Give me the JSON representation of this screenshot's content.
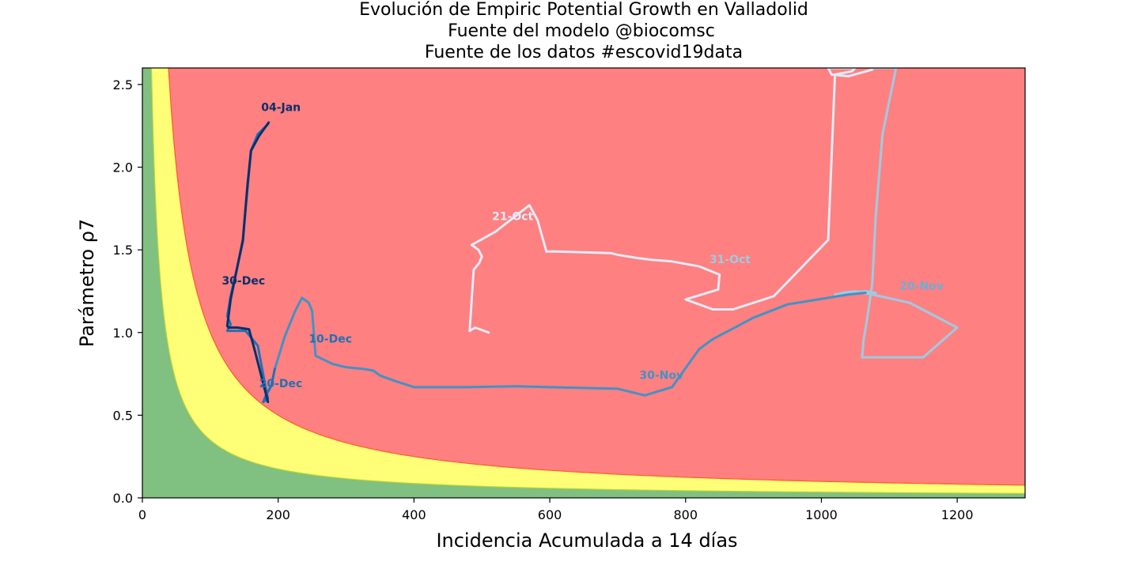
{
  "chart_data": {
    "type": "line",
    "title_lines": [
      "Evolución de Empiric Potential Growth en Valladolid",
      "Fuente del modelo @biocomsc",
      "Fuente de los datos #escovid19data"
    ],
    "xlabel": "Incidencia Acumulada a 14 días",
    "ylabel": "Parámetro ρ7",
    "xlim": [
      0,
      1300
    ],
    "ylim": [
      0,
      2.6
    ],
    "xticks": [
      0,
      200,
      400,
      600,
      800,
      1000,
      1200
    ],
    "yticks": [
      0.0,
      0.5,
      1.0,
      1.5,
      2.0,
      2.5
    ],
    "xtick_labels": [
      "0",
      "200",
      "400",
      "600",
      "800",
      "1000",
      "1200"
    ],
    "ytick_labels": [
      "0.0",
      "0.5",
      "1.0",
      "1.5",
      "2.0",
      "2.5"
    ],
    "grid": false,
    "zones": [
      {
        "name": "green",
        "k": 20,
        "color": "#80c080"
      },
      {
        "name": "yellow",
        "k": 35,
        "color": "#ffff77"
      },
      {
        "name": "red",
        "k": 100,
        "color": "#ff8080"
      }
    ],
    "zone_edges": {
      "green_yellow": "#bcd63a",
      "yellow_red": "#ff5a2a"
    },
    "series": [
      {
        "color": "#deebf7",
        "x": [
          510,
          490,
          482,
          485,
          488,
          496,
          500,
          495,
          485,
          520,
          570,
          582,
          595,
          610,
          690,
          700,
          730,
          750,
          780,
          820,
          850,
          848,
          800,
          840,
          870,
          930,
          1010,
          1020,
          1045,
          1050,
          1045,
          1045,
          1010,
          1015,
          1040,
          1075
        ],
        "y": [
          1.0,
          1.03,
          1.01,
          1.2,
          1.38,
          1.42,
          1.46,
          1.5,
          1.53,
          1.61,
          1.77,
          1.68,
          1.49,
          1.49,
          1.48,
          1.47,
          1.45,
          1.44,
          1.43,
          1.4,
          1.35,
          1.26,
          1.2,
          1.14,
          1.14,
          1.22,
          1.56,
          2.56,
          2.58,
          2.6,
          2.6,
          2.6,
          2.6,
          2.56,
          2.55,
          2.59
        ]
      },
      {
        "color": "#9ecae1",
        "x": [
          1075,
          1110,
          1090,
          1080,
          1075,
          1068,
          1062,
          1060,
          1060,
          1065,
          1070,
          1075,
          1150,
          1200,
          1130,
          1075,
          1060,
          1050,
          1030,
          1025,
          1020,
          1040,
          1065,
          1080
        ],
        "y": [
          2.6,
          2.6,
          2.2,
          1.7,
          1.3,
          1.1,
          0.95,
          0.85,
          0.85,
          0.85,
          0.85,
          0.85,
          0.85,
          1.03,
          1.18,
          1.23,
          1.24,
          1.25,
          1.24,
          1.23,
          1.23,
          1.24,
          1.25,
          1.24
        ]
      },
      {
        "color": "#4292c6",
        "x": [
          1065,
          1040,
          950,
          900,
          840,
          820,
          780,
          740,
          700,
          650,
          600,
          550,
          480,
          400,
          370,
          350,
          340,
          325,
          300,
          280,
          255,
          250,
          245,
          235,
          225,
          210,
          195
        ],
        "y": [
          1.24,
          1.23,
          1.17,
          1.09,
          0.96,
          0.9,
          0.67,
          0.62,
          0.66,
          0.665,
          0.67,
          0.675,
          0.67,
          0.67,
          0.71,
          0.74,
          0.77,
          0.78,
          0.79,
          0.81,
          0.86,
          1.13,
          1.18,
          1.21,
          1.13,
          0.98,
          0.78
        ]
      },
      {
        "color": "#2171b5",
        "x": [
          195,
          190,
          182,
          178,
          185,
          180,
          170,
          152,
          125,
          130,
          125,
          130,
          140,
          148,
          152,
          160,
          170,
          185
        ],
        "y": [
          0.78,
          0.68,
          0.62,
          0.58,
          0.6,
          0.7,
          0.92,
          1.01,
          1.01,
          1.05,
          1.1,
          1.22,
          1.4,
          1.55,
          1.75,
          2.1,
          2.2,
          2.26
        ]
      },
      {
        "color": "#08306b",
        "x": [
          185,
          165,
          157,
          140,
          133,
          127,
          125,
          130,
          140,
          148,
          155,
          160,
          172,
          186
        ],
        "y": [
          0.58,
          0.9,
          1.02,
          1.03,
          1.03,
          1.03,
          1.04,
          1.2,
          1.4,
          1.56,
          1.9,
          2.1,
          2.19,
          2.27
        ]
      }
    ],
    "annotations": [
      {
        "text": "21-Oct",
        "x": 515,
        "y": 1.68,
        "color": "#deebf7"
      },
      {
        "text": "31-Oct",
        "x": 835,
        "y": 1.42,
        "color": "#9ecae1"
      },
      {
        "text": "20-Nov",
        "x": 1115,
        "y": 1.26,
        "color": "#6baed6"
      },
      {
        "text": "30-Nov",
        "x": 732,
        "y": 0.72,
        "color": "#4292c6"
      },
      {
        "text": "10-Dec",
        "x": 245,
        "y": 0.94,
        "color": "#2171b5"
      },
      {
        "text": "20-Dec",
        "x": 172,
        "y": 0.67,
        "color": "#2171b5"
      },
      {
        "text": "30-Dec",
        "x": 117,
        "y": 1.29,
        "color": "#08306b"
      },
      {
        "text": "04-Jan",
        "x": 175,
        "y": 2.34,
        "color": "#08306b"
      }
    ]
  }
}
